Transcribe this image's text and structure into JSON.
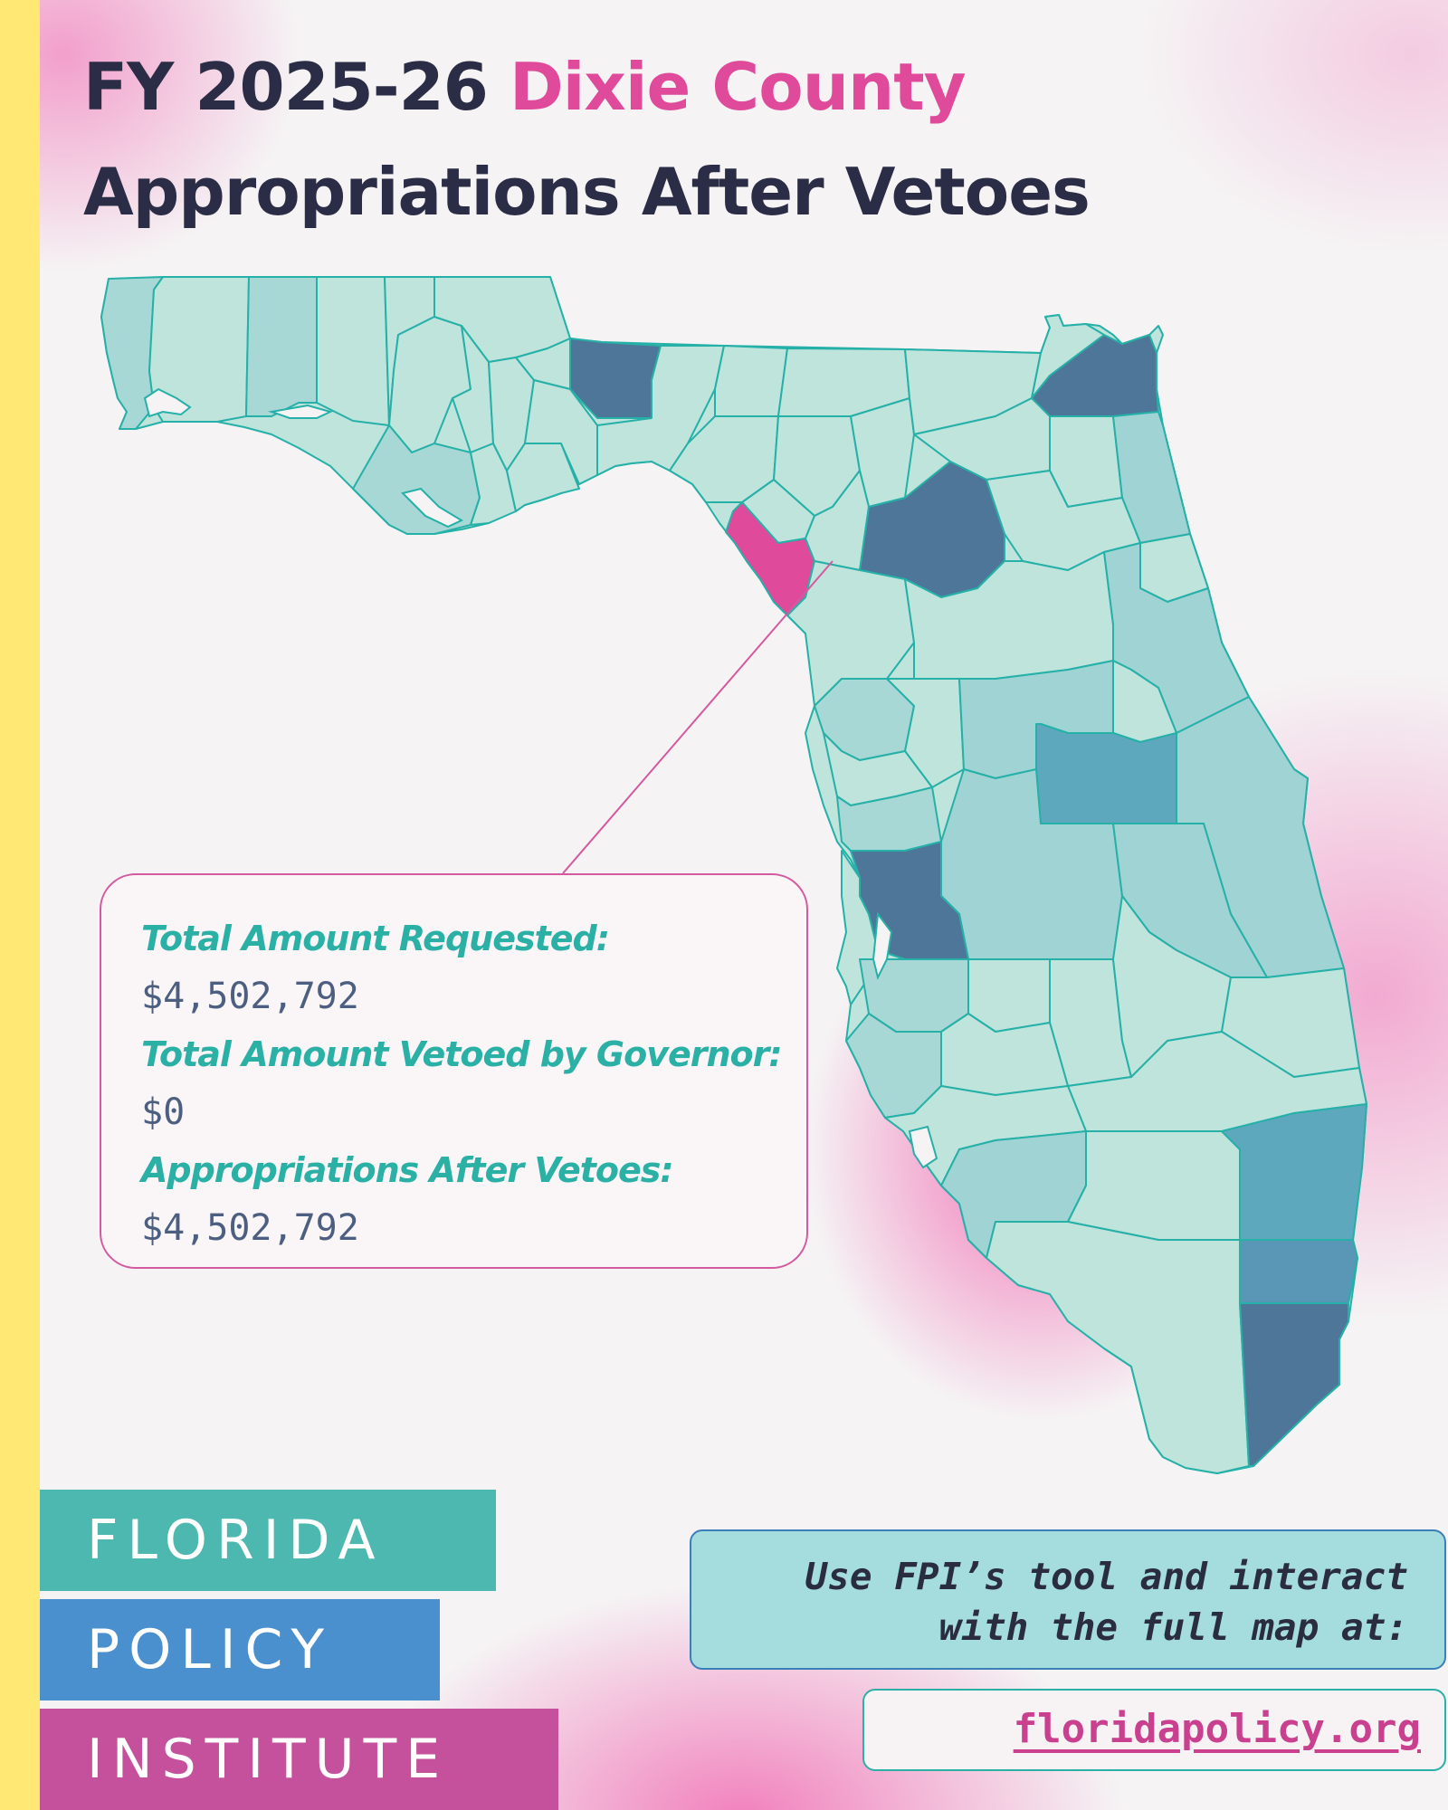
{
  "title": {
    "line1_prefix": "FY 2025-26",
    "county": "Dixie County",
    "line2": "Appropriations After Vetoes"
  },
  "colors": {
    "accent_pink": "#e04a9a",
    "title_dark": "#2b2c45",
    "county_light": "#bfe4dc",
    "county_mid": "#9fd3d4",
    "county_blue": "#5ea8be",
    "county_dark": "#4e7698",
    "county_highlight": "#e04a9a"
  },
  "map": {
    "highlighted_county": "Dixie County",
    "highlight_icon": "county-pointer-line"
  },
  "info": {
    "requested_label": "Total Amount Requested:",
    "requested_value": "$4,502,792",
    "vetoed_label": "Total Amount Vetoed by Governor:",
    "vetoed_value": "$0",
    "after_label": "Appropriations After Vetoes:",
    "after_value": "$4,502,792"
  },
  "logo": {
    "line1": "FLORIDA",
    "line2": "POLICY",
    "line3": "INSTITUTE"
  },
  "cta": {
    "line1": "Use FPI’s tool and interact",
    "line2": "with the full map at:",
    "url": "floridapolicy.org"
  }
}
